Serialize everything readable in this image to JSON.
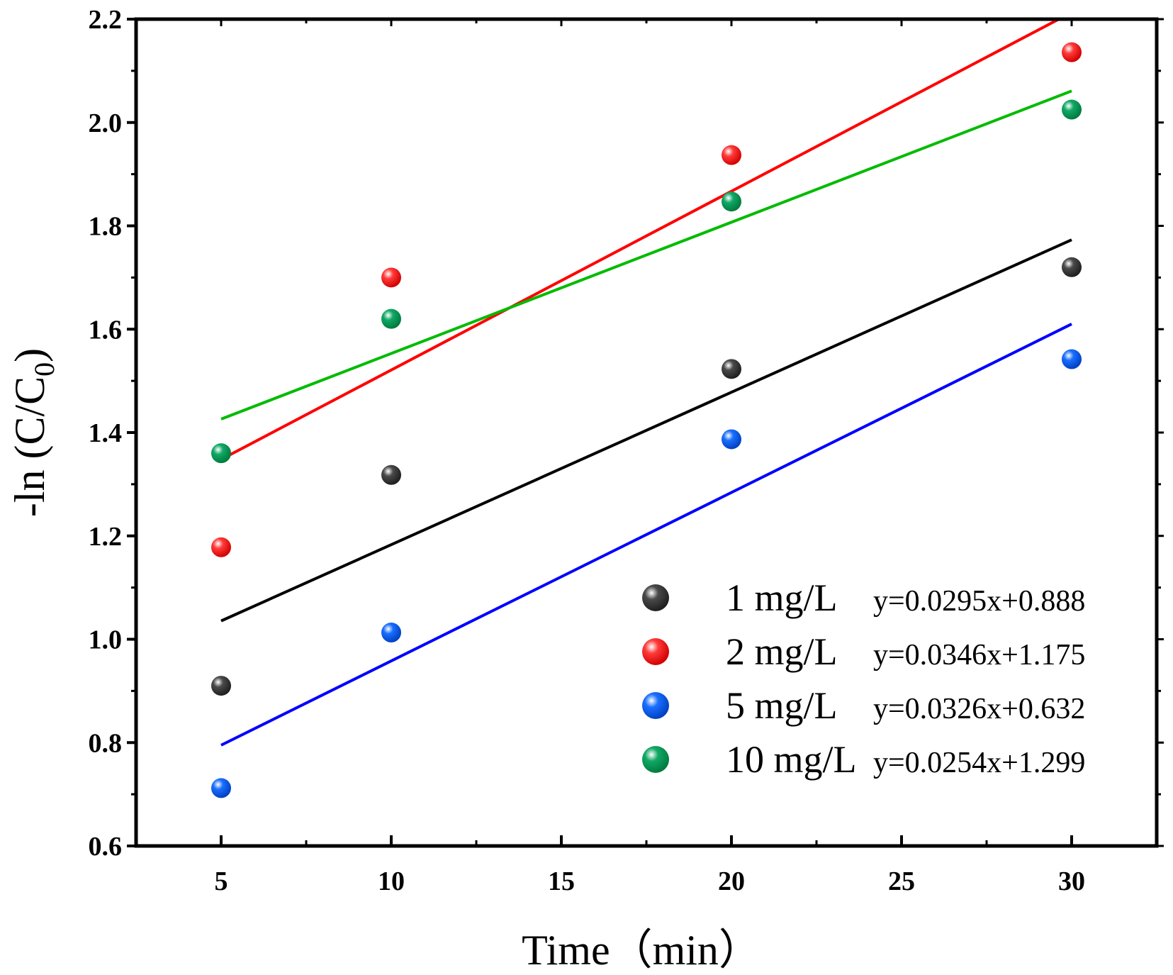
{
  "chart_data": {
    "type": "scatter",
    "title": "",
    "xlabel": "Time（min）",
    "ylabel_parts": {
      "prefix": "-ln (C/C",
      "subscript": "0",
      "suffix": ")"
    },
    "xlim": [
      2.5,
      32.5
    ],
    "ylim": [
      0.6,
      2.2
    ],
    "xticks": [
      5,
      10,
      15,
      20,
      25,
      30
    ],
    "xtick_labels": [
      "5",
      "10",
      "15",
      "20",
      "25",
      "30"
    ],
    "yticks": [
      0.6,
      0.8,
      1.0,
      1.2,
      1.4,
      1.6,
      1.8,
      2.0,
      2.2
    ],
    "ytick_labels": [
      "0.6",
      "0.8",
      "1.0",
      "1.2",
      "1.4",
      "1.6",
      "1.8",
      "2.0",
      "2.2"
    ],
    "legend_position": "bottom-right",
    "grid": false,
    "x": [
      5,
      10,
      20,
      30
    ],
    "series": [
      {
        "name": "1 mg/L",
        "equation": "y=0.0295x+0.888",
        "color": "#000000",
        "marker_color": "#4a4a4a",
        "slope": 0.0295,
        "intercept": 0.888,
        "values": [
          0.91,
          1.318,
          1.523,
          1.72
        ]
      },
      {
        "name": "2 mg/L",
        "equation": "y=0.0346x+1.175",
        "color": "#ff0000",
        "marker_color": "#ff3b3b",
        "slope": 0.0346,
        "intercept": 1.175,
        "values": [
          1.178,
          1.7,
          1.937,
          2.136
        ]
      },
      {
        "name": "5 mg/L",
        "equation": "y=0.0326x+0.632",
        "color": "#0000ff",
        "marker_color": "#1a6fff",
        "slope": 0.0326,
        "intercept": 0.632,
        "values": [
          0.712,
          1.013,
          1.387,
          1.542
        ]
      },
      {
        "name": "10 mg/L",
        "equation": "y=0.0254x+1.299",
        "color": "#00bb00",
        "marker_color": "#11a866",
        "slope": 0.0254,
        "intercept": 1.299,
        "values": [
          1.36,
          1.62,
          1.847,
          2.025
        ]
      }
    ]
  }
}
